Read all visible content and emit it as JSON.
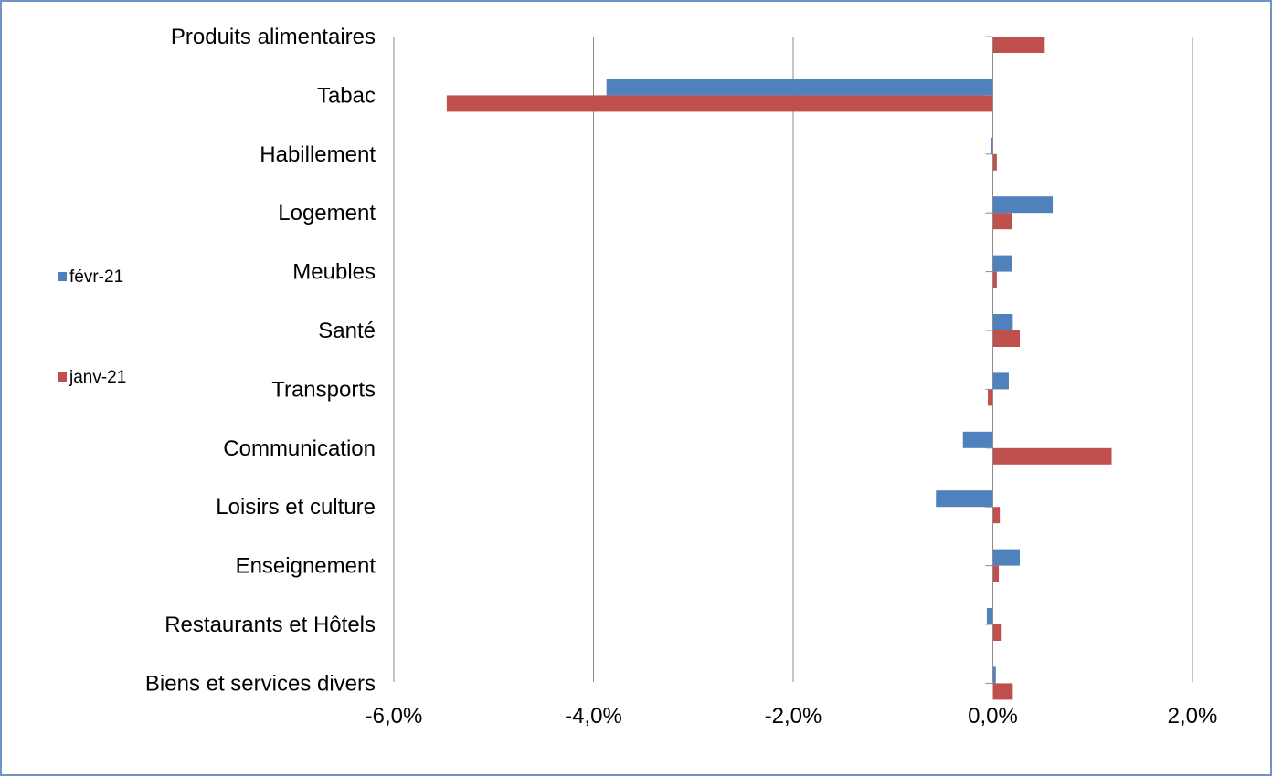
{
  "chart_data": {
    "type": "bar",
    "orientation": "horizontal",
    "categories": [
      "Produits alimentaires",
      "Tabac",
      "Habillement",
      "Logement",
      "Meubles",
      "Santé",
      "Transports",
      "Communication",
      "Loisirs et culture",
      "Enseignement",
      "Restaurants et Hôtels",
      "Biens et services divers"
    ],
    "series": [
      {
        "name": "févr-21",
        "color": "#4f81bd",
        "values": [
          0.0,
          -3.87,
          -0.02,
          0.6,
          0.19,
          0.2,
          0.16,
          -0.3,
          -0.57,
          0.27,
          -0.06,
          0.03
        ]
      },
      {
        "name": "janv-21",
        "color": "#c0504d",
        "values": [
          0.52,
          -5.47,
          0.04,
          0.19,
          0.04,
          0.27,
          -0.05,
          1.19,
          0.07,
          0.06,
          0.08,
          0.2
        ]
      }
    ],
    "xlim": [
      -6,
      2
    ],
    "xticks": [
      -6,
      -4,
      -2,
      0,
      2
    ],
    "xtick_labels": [
      "-6,0%",
      "-4,0%",
      "-2,0%",
      "0,0%",
      "2,0%"
    ],
    "grid": "vertical",
    "legend_position": "left"
  }
}
